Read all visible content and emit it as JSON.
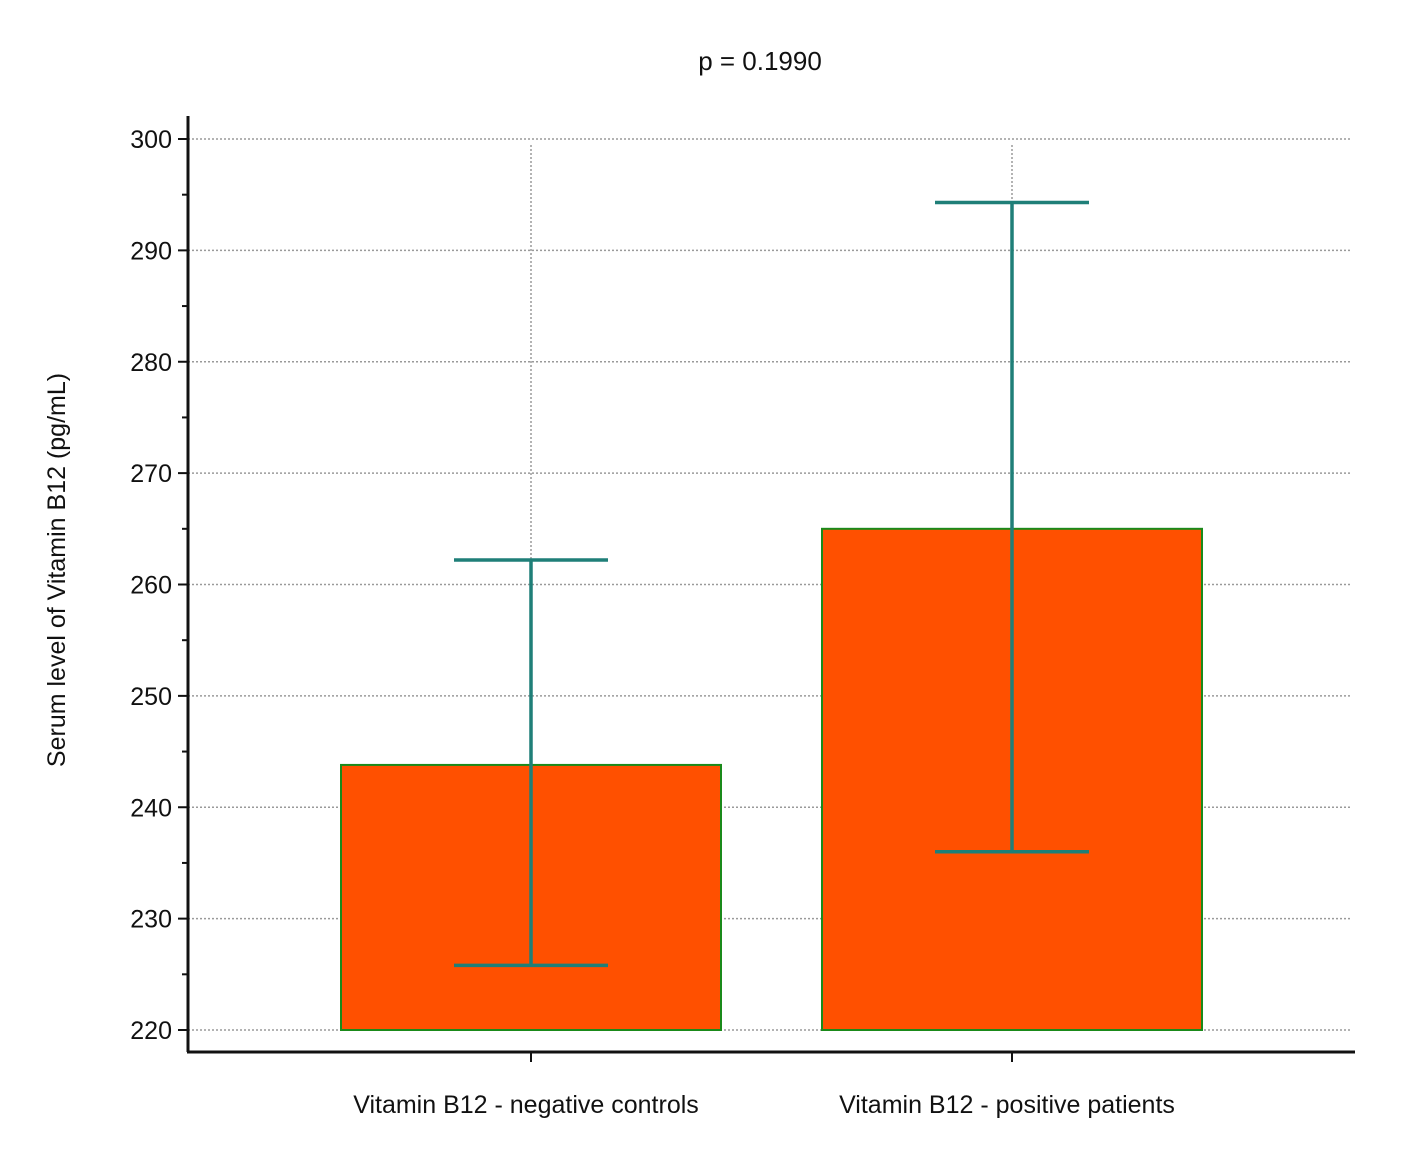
{
  "chart_data": {
    "type": "bar",
    "title": "p = 0.1990",
    "xlabel": "",
    "ylabel": "Serum level of Vitamin B12 (pg/mL)",
    "ylim": [
      220,
      300
    ],
    "yticks": [
      "220",
      "230",
      "240",
      "250",
      "260",
      "270",
      "280",
      "290",
      "300"
    ],
    "categories": [
      "Vitamin B12 - negative controls",
      "Vitamin B12 - positive patients"
    ],
    "values": [
      243.8,
      265.0
    ],
    "error_bars": [
      {
        "low": 225.8,
        "high": 262.2
      },
      {
        "low": 236.0,
        "high": 294.3
      }
    ],
    "grid": true,
    "colors": {
      "bar_fill": "#ff5000",
      "bar_edge": "#1a8a1a",
      "error_bar": "#1f7f78",
      "grid": "#9a9a9a",
      "axis": "#111111"
    }
  }
}
